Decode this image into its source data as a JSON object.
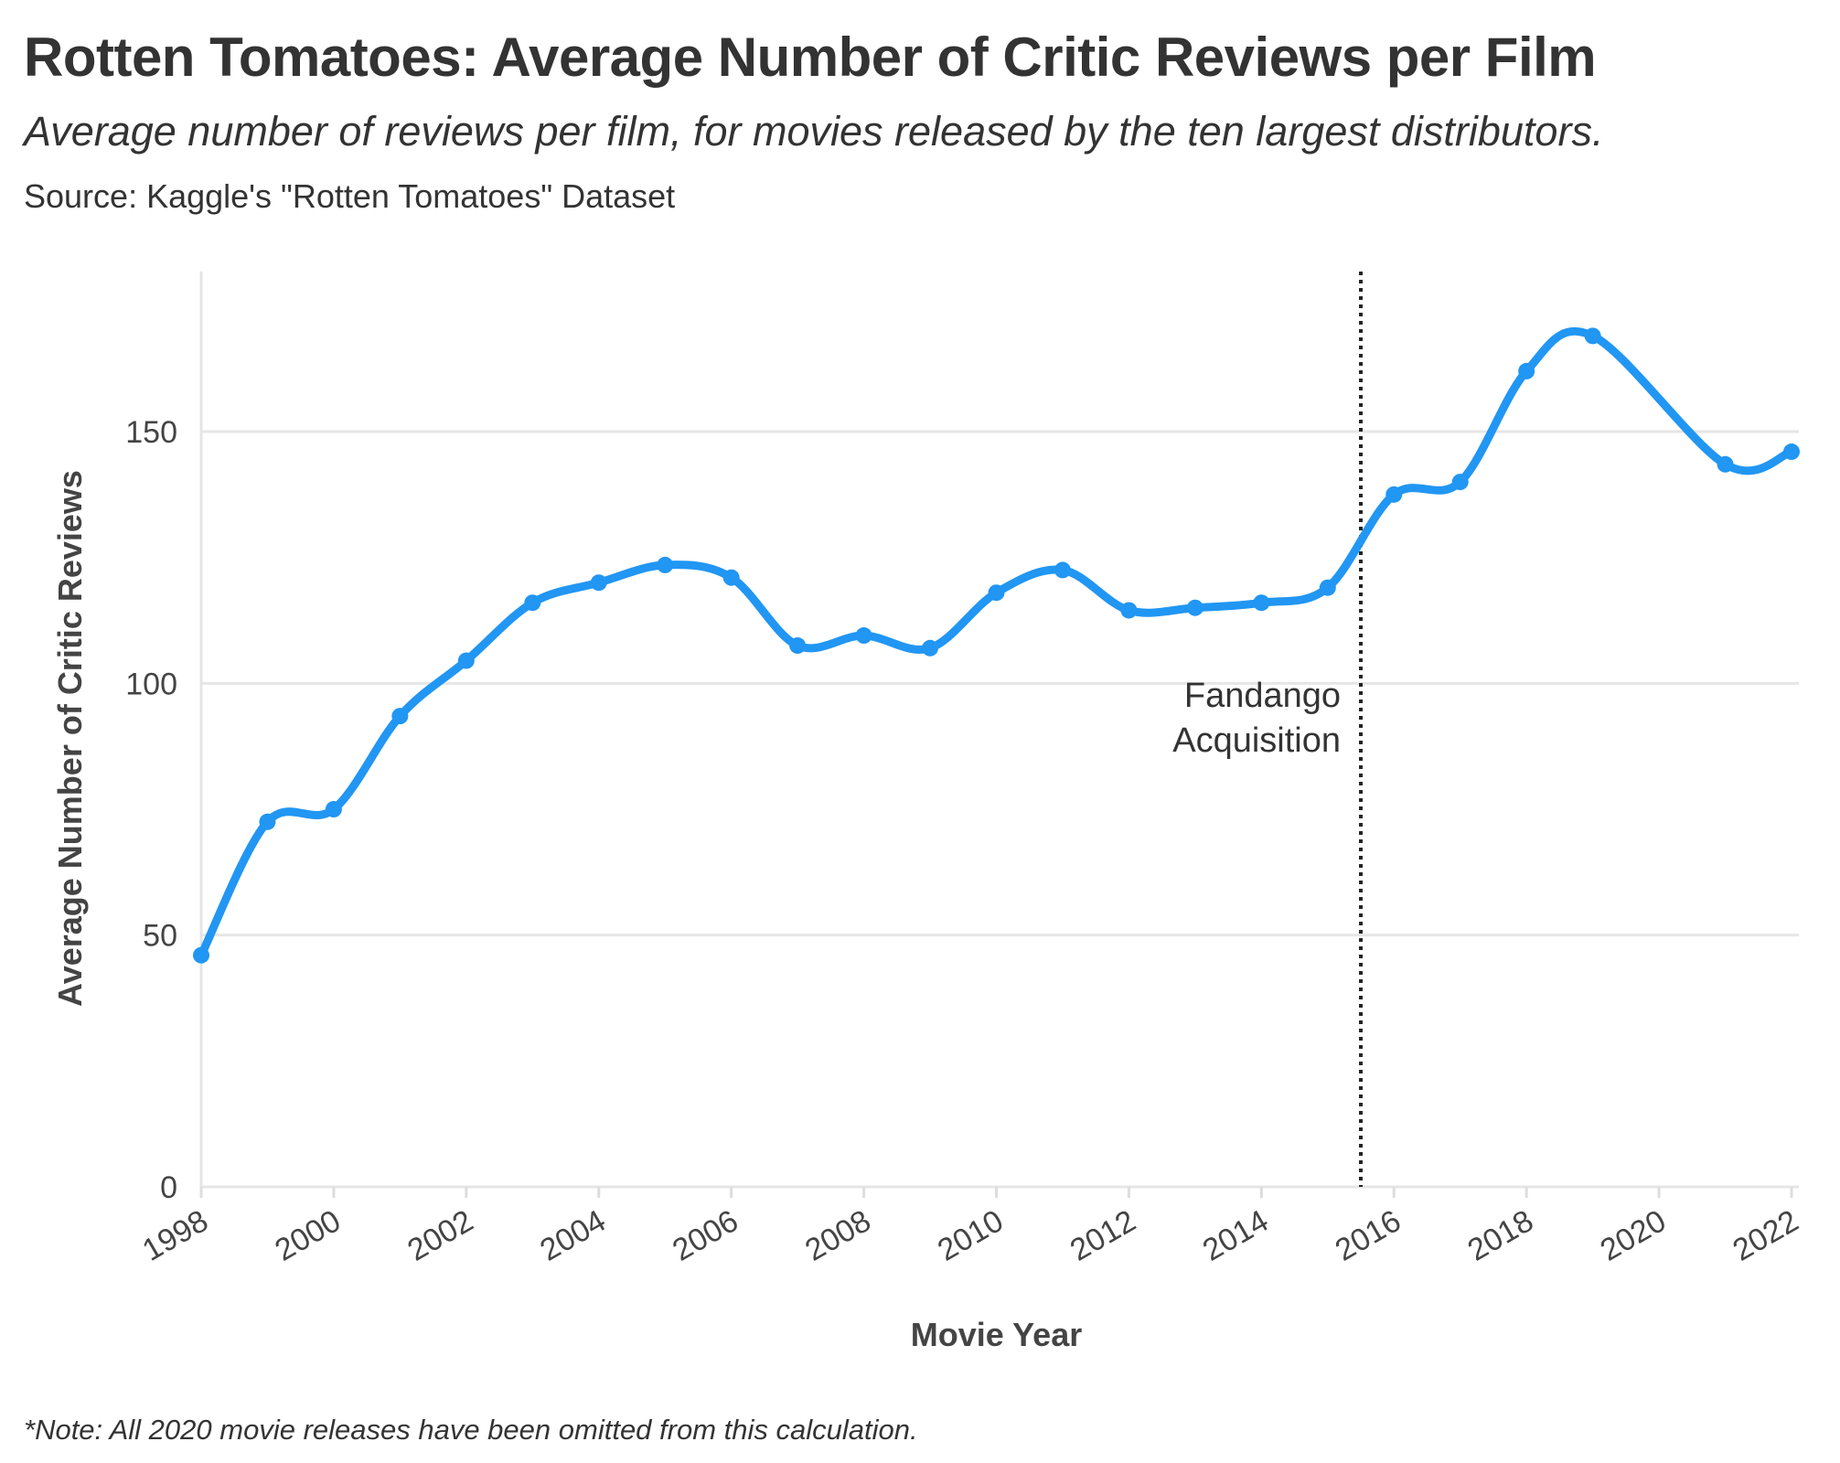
{
  "header": {
    "title": "Rotten Tomatoes: Average Number of Critic Reviews per Film",
    "subtitle": "Average number of reviews per film, for movies released by the ten largest distributors.",
    "source": "Source: Kaggle's \"Rotten Tomatoes\" Dataset"
  },
  "footer": {
    "note": "*Note: All 2020 movie releases have been omitted from this calculation."
  },
  "chart_data": {
    "type": "line",
    "title": "Rotten Tomatoes: Average Number of Critic Reviews per Film",
    "xlabel": "Movie Year",
    "ylabel": "Average Number of Critic Reviews",
    "xlim": [
      1998,
      2022
    ],
    "ylim": [
      0,
      180
    ],
    "x_ticks": [
      "1998",
      "2000",
      "2002",
      "2004",
      "2006",
      "2008",
      "2010",
      "2012",
      "2014",
      "2016",
      "2018",
      "2020",
      "2022"
    ],
    "y_ticks": [
      "0",
      "50",
      "100",
      "150"
    ],
    "grid": "horizontal",
    "line_color": "#2196f3",
    "curve": "smooth",
    "x": [
      1998,
      1999,
      2000,
      2001,
      2002,
      2003,
      2004,
      2005,
      2006,
      2007,
      2008,
      2009,
      2010,
      2011,
      2012,
      2013,
      2014,
      2015,
      2016,
      2017,
      2018,
      2019,
      2021,
      2022
    ],
    "values": [
      46,
      72.5,
      75,
      93.5,
      104.5,
      116,
      120,
      123.5,
      121,
      107.5,
      109.5,
      107,
      118,
      122.5,
      114.5,
      115,
      116,
      119,
      137.5,
      140,
      162,
      169,
      143.5,
      146
    ],
    "annotations": [
      {
        "type": "vertical-line",
        "x": 2015.5,
        "style": "dotted",
        "text_lines": [
          "Fandango",
          "Acquisition"
        ]
      }
    ]
  }
}
